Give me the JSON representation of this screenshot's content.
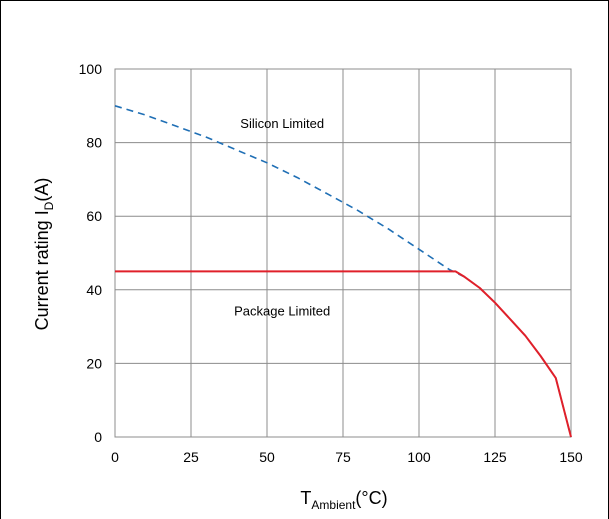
{
  "chart_data": {
    "type": "line",
    "xlabel": {
      "main": "T",
      "subscript": "Ambient",
      "suffix": "(°C)"
    },
    "ylabel": {
      "main": "Current rating I",
      "subscript": "D",
      "suffix": "(A)"
    },
    "xlim": [
      0,
      150
    ],
    "ylim": [
      0,
      100
    ],
    "x_ticks": [
      0,
      25,
      50,
      75,
      100,
      125,
      150
    ],
    "y_ticks": [
      0,
      20,
      40,
      60,
      80,
      100
    ],
    "x_tick_labels": [
      "0",
      "25",
      "50",
      "75",
      "100",
      "125",
      "150"
    ],
    "y_tick_labels": [
      "0",
      "20",
      "40",
      "60",
      "80",
      "100"
    ],
    "grid": true,
    "legend": "none",
    "annotations": [
      {
        "text": "Silicon Limited",
        "x": 55,
        "y": 84
      },
      {
        "text": "Package Limited",
        "x": 55,
        "y": 33
      }
    ],
    "series": [
      {
        "name": "Silicon Limited",
        "style": "dashed",
        "color": "#1f6fb5",
        "x": [
          0,
          10,
          20,
          30,
          40,
          50,
          60,
          70,
          80,
          90,
          100,
          110,
          115,
          120,
          125,
          130,
          135,
          140,
          145,
          150
        ],
        "y": [
          90,
          87.5,
          84.5,
          81.5,
          78,
          74.5,
          70.5,
          66,
          61.5,
          56.5,
          51,
          45.5,
          43.5,
          40.5,
          36.5,
          32,
          27.5,
          22,
          16,
          0
        ]
      },
      {
        "name": "Package Limited",
        "style": "solid",
        "color": "#e0202a",
        "x": [
          0,
          112,
          115,
          120,
          125,
          130,
          135,
          140,
          145,
          150
        ],
        "y": [
          45,
          45,
          43.5,
          40.5,
          36.5,
          32,
          27.5,
          22,
          16,
          0
        ]
      }
    ]
  }
}
